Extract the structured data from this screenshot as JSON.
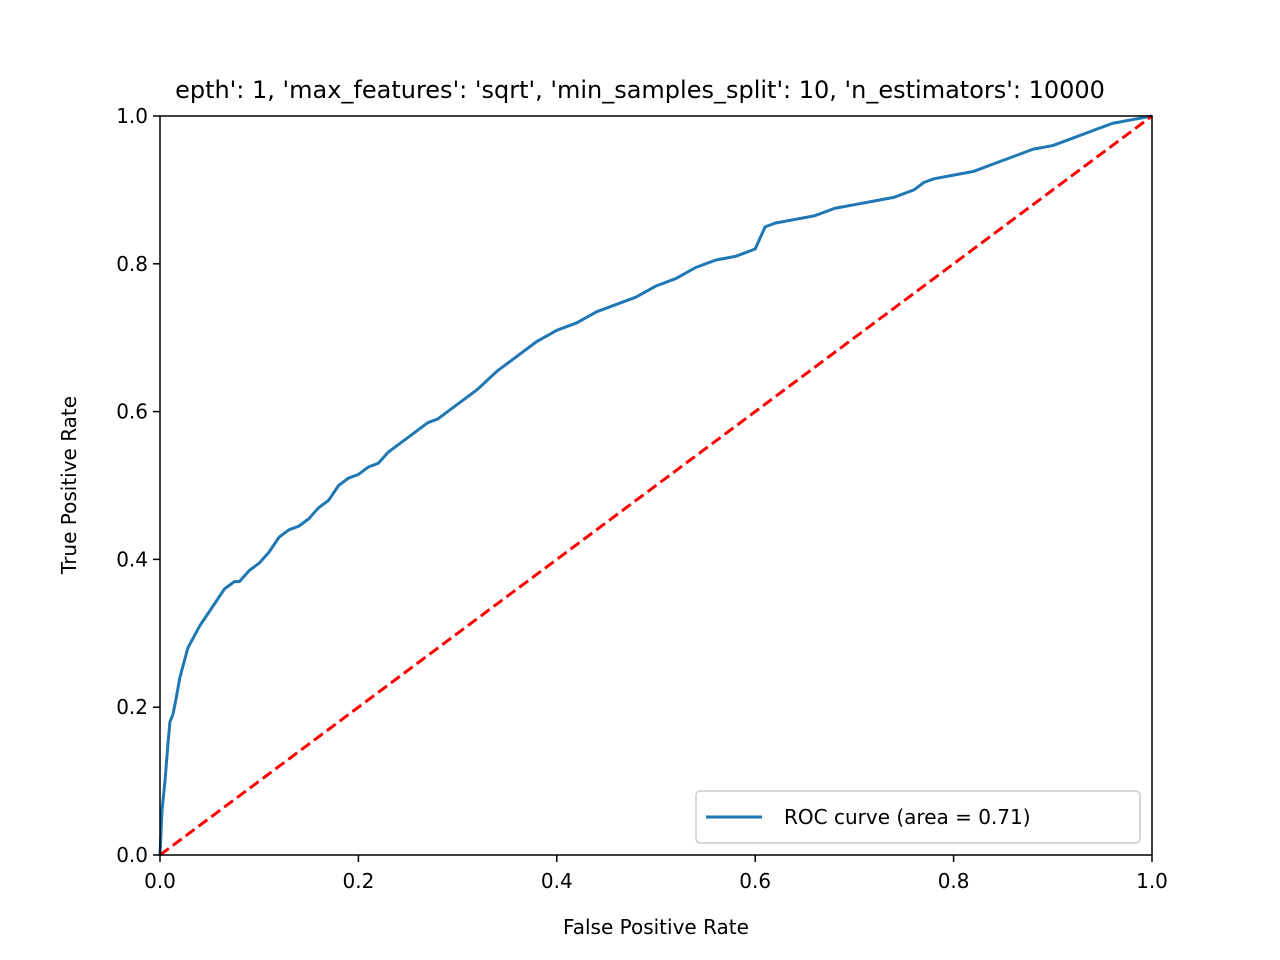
{
  "chart_data": {
    "type": "line",
    "title": "epth': 1, 'max_features': 'sqrt', 'min_samples_split': 10, 'n_estimators': 10000",
    "xlabel": "False Positive Rate",
    "ylabel": "True Positive Rate",
    "xlim": [
      0.0,
      1.0
    ],
    "ylim": [
      0.0,
      1.0
    ],
    "xticks": [
      "0.0",
      "0.2",
      "0.4",
      "0.6",
      "0.8",
      "1.0"
    ],
    "yticks": [
      "0.0",
      "0.2",
      "0.4",
      "0.6",
      "0.8",
      "1.0"
    ],
    "grid": false,
    "legend": {
      "location": "lower right",
      "entries": [
        "ROC curve (area = 0.71)"
      ]
    },
    "series": [
      {
        "name": "ROC curve (area = 0.71)",
        "color": "#1f77b4",
        "style": "solid",
        "x": [
          0.0,
          0.002,
          0.005,
          0.008,
          0.01,
          0.013,
          0.016,
          0.02,
          0.024,
          0.028,
          0.032,
          0.036,
          0.04,
          0.045,
          0.05,
          0.055,
          0.06,
          0.065,
          0.07,
          0.075,
          0.08,
          0.09,
          0.1,
          0.11,
          0.12,
          0.13,
          0.14,
          0.15,
          0.16,
          0.17,
          0.18,
          0.19,
          0.2,
          0.21,
          0.22,
          0.23,
          0.24,
          0.25,
          0.26,
          0.27,
          0.28,
          0.29,
          0.3,
          0.32,
          0.34,
          0.36,
          0.38,
          0.4,
          0.42,
          0.44,
          0.46,
          0.48,
          0.5,
          0.52,
          0.54,
          0.56,
          0.58,
          0.6,
          0.61,
          0.62,
          0.64,
          0.66,
          0.68,
          0.7,
          0.72,
          0.74,
          0.76,
          0.77,
          0.78,
          0.8,
          0.82,
          0.84,
          0.86,
          0.88,
          0.9,
          0.92,
          0.94,
          0.96,
          0.98,
          1.0
        ],
        "y": [
          0.0,
          0.06,
          0.1,
          0.15,
          0.18,
          0.19,
          0.21,
          0.24,
          0.26,
          0.28,
          0.29,
          0.3,
          0.31,
          0.32,
          0.33,
          0.34,
          0.35,
          0.36,
          0.365,
          0.37,
          0.37,
          0.385,
          0.395,
          0.41,
          0.43,
          0.44,
          0.445,
          0.455,
          0.47,
          0.48,
          0.5,
          0.51,
          0.515,
          0.525,
          0.53,
          0.545,
          0.555,
          0.565,
          0.575,
          0.585,
          0.59,
          0.6,
          0.61,
          0.63,
          0.655,
          0.675,
          0.695,
          0.71,
          0.72,
          0.735,
          0.745,
          0.755,
          0.77,
          0.78,
          0.795,
          0.805,
          0.81,
          0.82,
          0.85,
          0.855,
          0.86,
          0.865,
          0.875,
          0.88,
          0.885,
          0.89,
          0.9,
          0.91,
          0.915,
          0.92,
          0.925,
          0.935,
          0.945,
          0.955,
          0.96,
          0.97,
          0.98,
          0.99,
          0.995,
          1.0
        ]
      },
      {
        "color": "#ff0000",
        "style": "dashed",
        "x": [
          0.0,
          1.0
        ],
        "y": [
          0.0,
          1.0
        ]
      }
    ]
  }
}
